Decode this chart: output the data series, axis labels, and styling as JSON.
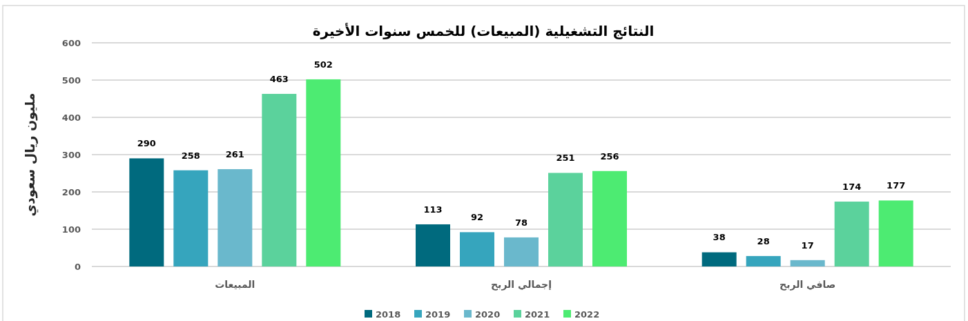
{
  "chart_data": {
    "type": "bar",
    "title": "النتائج التشغيلية (المبيعات) للخمس سنوات الأخيرة",
    "ylabel": "مليون ريال سعودي",
    "categories": [
      "المبيعات",
      "إجمالي الربح",
      "صافي الربح"
    ],
    "series": [
      {
        "name": "2018",
        "color": "#006a7e",
        "values": [
          290,
          113,
          38
        ]
      },
      {
        "name": "2019",
        "color": "#36a5bd",
        "values": [
          258,
          92,
          28
        ]
      },
      {
        "name": "2020",
        "color": "#6ab8cc",
        "values": [
          261,
          78,
          17
        ]
      },
      {
        "name": "2021",
        "color": "#5bd29c",
        "values": [
          463,
          251,
          174
        ]
      },
      {
        "name": "2022",
        "color": "#4deb72",
        "values": [
          502,
          256,
          177
        ]
      }
    ],
    "ylim": [
      0,
      600
    ],
    "yticks": [
      0,
      100,
      200,
      300,
      400,
      500,
      600
    ],
    "grid": "y",
    "legend": "bottom",
    "data_labels": true
  }
}
